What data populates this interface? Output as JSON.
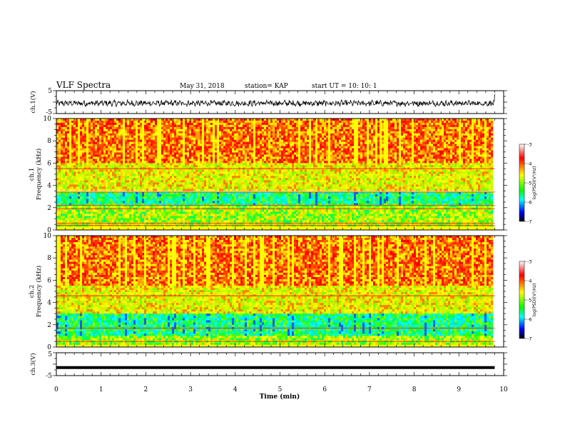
{
  "header": {
    "title": "VLF Spectra",
    "date": "May 31, 2018",
    "station": "station= KAP",
    "start": "start UT = 10: 10: 1"
  },
  "chart_data": [
    {
      "type": "line",
      "ylabel": "ch.1(V)",
      "ylim": [
        -5,
        5
      ],
      "yticks": [
        "5",
        "-5"
      ],
      "xlim": [
        0,
        10
      ],
      "data_end_min": 9.8,
      "approx_level": -0.5,
      "approx_range": [
        -2.5,
        1.2
      ],
      "note_line": "noisy broadband waveform"
    },
    {
      "type": "heatmap",
      "ylabel_top": "ch.1",
      "ylabel": "Frequency (kHz)",
      "ylim": [
        0,
        10
      ],
      "yticks": [
        "0",
        "2",
        "4",
        "6",
        "8",
        "10"
      ],
      "xlim": [
        0,
        10
      ],
      "data_end_min": 9.8,
      "bands_khz": [
        {
          "from": 6.0,
          "to": 10.0,
          "level": "high"
        },
        {
          "from": 3.5,
          "to": 6.0,
          "level": "mid"
        },
        {
          "from": 2.2,
          "to": 3.4,
          "level": "low"
        },
        {
          "from": 0.3,
          "to": 2.2,
          "level": "mid-low"
        }
      ],
      "lines_khz": [
        0.4,
        0.6,
        1.9,
        2.2,
        3.4,
        5.5
      ],
      "colorbar": {
        "label": "log(PSD)(V²/Hz)",
        "range": [
          -7,
          -3
        ],
        "ticks": [
          "-3",
          "-4",
          "-5",
          "-6",
          "-7"
        ],
        "colors": [
          "#ffffff",
          "#ff0000",
          "#ffff00",
          "#00ff00",
          "#00ffff",
          "#0000ff",
          "#000000"
        ]
      }
    },
    {
      "type": "heatmap",
      "ylabel_top": "ch.2",
      "ylabel": "Frequency (kHz)",
      "ylim": [
        0,
        10
      ],
      "yticks": [
        "0",
        "2",
        "4",
        "6",
        "8",
        "10"
      ],
      "xlim": [
        0,
        10
      ],
      "data_end_min": 9.8,
      "bands_khz": [
        {
          "from": 5.5,
          "to": 10.0,
          "level": "high"
        },
        {
          "from": 3.0,
          "to": 5.5,
          "level": "mid"
        },
        {
          "from": 1.0,
          "to": 3.0,
          "level": "low"
        },
        {
          "from": 0.2,
          "to": 1.0,
          "level": "mid-low"
        }
      ],
      "lines_khz": [
        0.5,
        1.7,
        4.6
      ],
      "colorbar": {
        "label": "log(PSD)(V²/Hz)",
        "range": [
          -7,
          -3
        ],
        "ticks": [
          "-3",
          "-4",
          "-5",
          "-6",
          "-7"
        ],
        "colors": [
          "#ffffff",
          "#ff0000",
          "#ffff00",
          "#00ff00",
          "#00ffff",
          "#0000ff",
          "#000000"
        ]
      }
    },
    {
      "type": "line",
      "ylabel": "ch.3(V)",
      "ylim": [
        -5,
        5
      ],
      "yticks": [
        "5",
        "-5"
      ],
      "xlim": [
        0,
        10
      ],
      "data_end_min": 9.8,
      "approx_level": -1.5
    }
  ],
  "xaxis": {
    "label": "Time (min)",
    "ticks": [
      "0",
      "1",
      "2",
      "3",
      "4",
      "5",
      "6",
      "7",
      "8",
      "9",
      "10"
    ]
  }
}
